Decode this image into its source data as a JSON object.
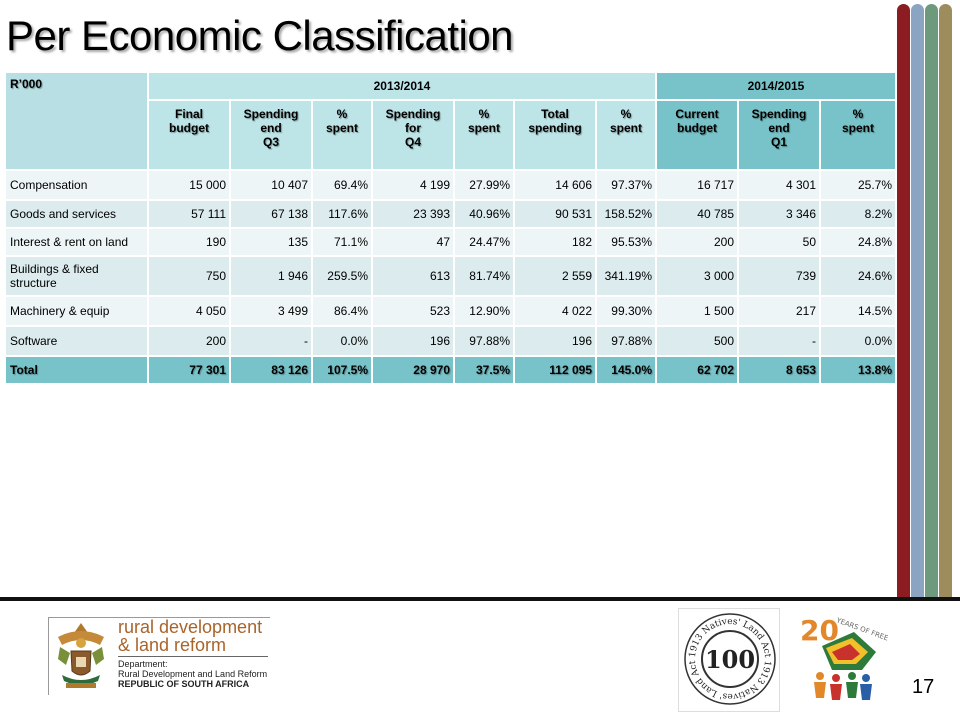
{
  "slide": {
    "title": "Per Economic Classification",
    "page_number": "17"
  },
  "table": {
    "corner": "R’000",
    "year_groups": [
      "2013/2014",
      "2014/2015"
    ],
    "columns": [
      [
        "Final",
        "budget"
      ],
      [
        "Spending",
        "end",
        "Q3"
      ],
      [
        "%",
        "spent"
      ],
      [
        "Spending",
        "for",
        "Q4"
      ],
      [
        "%",
        "spent"
      ],
      [
        "Total",
        "spending"
      ],
      [
        "%",
        "spent"
      ],
      [
        "Current",
        "budget"
      ],
      [
        "Spending",
        "end",
        "Q1"
      ],
      [
        "%",
        "spent"
      ]
    ],
    "rows": [
      {
        "label": "Compensation",
        "values": [
          "15 000",
          "10 407",
          "69.4%",
          "4 199",
          "27.99%",
          "14 606",
          "97.37%",
          "16 717",
          "4 301",
          "25.7%"
        ]
      },
      {
        "label": "Goods and services",
        "values": [
          "57 111",
          "67 138",
          "117.6%",
          "23 393",
          "40.96%",
          "90 531",
          "158.52%",
          "40 785",
          "3 346",
          "8.2%"
        ]
      },
      {
        "label": "Interest  & rent  on land",
        "values": [
          "190",
          "135",
          "71.1%",
          "47",
          "24.47%",
          "182",
          "95.53%",
          "200",
          "50",
          "24.8%"
        ]
      },
      {
        "label": "Buildings & fixed structure",
        "values": [
          "750",
          "1 946",
          "259.5%",
          "613",
          "81.74%",
          "2 559",
          "341.19%",
          "3 000",
          "739",
          "24.6%"
        ]
      },
      {
        "label": "Machinery  & equip",
        "values": [
          "4 050",
          "3 499",
          "86.4%",
          "523",
          "12.90%",
          "4 022",
          "99.30%",
          "1 500",
          "217",
          "14.5%"
        ]
      },
      {
        "label": "Software",
        "values": [
          "200",
          "-",
          "0.0%",
          "196",
          "97.88%",
          "196",
          "97.88%",
          "500",
          "-",
          "0.0%"
        ]
      }
    ],
    "total": {
      "label": "Total",
      "values": [
        "77 301",
        "83 126",
        "107.5%",
        "28 970",
        "37.5%",
        "112 095",
        "145.0%",
        "62 702",
        "8 653",
        "13.8%"
      ]
    }
  },
  "footer": {
    "brand_line1": "rural development",
    "brand_line2": "& land reform",
    "dept_line1": "Department:",
    "dept_line2": "Rural Development and Land Reform",
    "dept_line3": "REPUBLIC OF SOUTH AFRICA",
    "seal_text": "1913 Natives' Land Act",
    "seal_number": "100",
    "freedom_number": "20",
    "freedom_text": "YEARS OF FREEDOM"
  },
  "colors": {
    "header_light": "#bde4e7",
    "header_dark": "#78c3c9",
    "row_light": "#eef5f6",
    "row_alt": "#dcebee",
    "bar1": "#8a1c22",
    "bar2": "#8aa4c2",
    "bar3": "#6d9a7c",
    "bar4": "#9e8d5c",
    "brand": "#a9642a"
  }
}
